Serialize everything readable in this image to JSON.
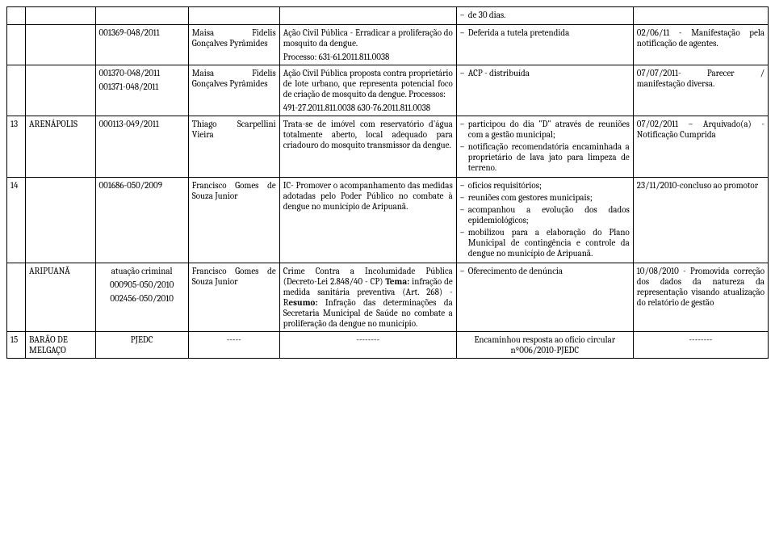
{
  "rows": [
    {
      "num": "",
      "city": "",
      "proc": "",
      "resp": "",
      "desc": "",
      "status": [
        "de 30 dias."
      ],
      "note": ""
    },
    {
      "num": "",
      "city": "",
      "proc": "001369-048/2011",
      "resp": "Maisa Fidelis Gonçalves Pyrâmides",
      "desc_paras": [
        "Ação Civil Pública - Erradicar a proliferação do mosquito da dengue.",
        "Processo: 631-61.2011.811.0038"
      ],
      "status": [
        "Deferida a tutela pretendida"
      ],
      "note": "02/06/11 - Manifestação pela notificação de agentes."
    },
    {
      "num": "",
      "city": "",
      "proc_paras": [
        "001370-048/2011",
        "001371-048/2011"
      ],
      "resp": "Maisa Fidelis Gonçalves Pyrâmides",
      "desc_paras": [
        "Ação Civil Pública proposta contra proprietário de lote urbano, que representa potencial foco de criação de mosquito da dengue. Processos:",
        "491-27.2011.811.0038 630-76.2011.811.0038"
      ],
      "status": [
        "ACP - distribuída"
      ],
      "note": "07/07/2011- Parecer / manifestação diversa."
    },
    {
      "num": "13",
      "city": "ARENÁPOLIS",
      "proc": "000113-049/2011",
      "resp": "Thiago Scarpellini Vieira",
      "desc": "Trata-se de imóvel com reservatório d'água totalmente aberto, local adequado para criadouro do mosquito transmissor da dengue.",
      "status": [
        "participou do dia \"D\" através de reuniões com a gestão municipal;",
        "notificação recomendatória encaminhada a proprietário de lava jato para limpeza de terreno."
      ],
      "note": "07/02/2011 – Arquivado(a) - Notificação Cumprida"
    },
    {
      "num": "14",
      "city": "",
      "proc": "001686-050/2009",
      "resp": "Francisco Gomes de Souza Junior",
      "desc": "IC- Promover o acompanhamento das medidas adotadas pelo Poder Público no combate à dengue no município de Aripuanã.",
      "status": [
        "ofícios requisitórios;",
        "reuniões com gestores municipais;",
        "acompanhou a evolução dos dados epidemiológicos;",
        "mobilizou para a elaboração do Plano Municipal de contingência e controle da dengue no município de Aripuanã."
      ],
      "note": "23/11/2010-concluso ao promotor"
    },
    {
      "num": "",
      "city": "ARIPUANÃ",
      "proc_paras": [
        "atuação criminal",
        "000905-050/2010",
        "002456-050/2010"
      ],
      "proc_center": true,
      "resp": "Francisco Gomes de Souza Junior",
      "desc_html": "Crime Contra a Incolumidade Pública (Decreto-Lei 2.848/40 - CP) <b>Tema:</b> infração de medida sanitária preventiva (Art. 268) -R<b>esumo:</b> Infração das determinações da Secretaria Municipal de Saúde no combate a proliferação da dengue no município.",
      "status": [
        "Oferecimento de denúncia"
      ],
      "note": "10/08/2010 - Promovida correção dos dados da natureza da representação visando atualização do relatório de gestão"
    },
    {
      "num": "15",
      "city": "BARÃO DE MELGAÇO",
      "proc": "PJEDC",
      "proc_center": true,
      "resp": "-----",
      "resp_center": true,
      "desc": "--------",
      "desc_center": true,
      "status_text": "Encaminhou resposta ao ofício circular nº006/2010-PJEDC",
      "status_center": true,
      "note": "--------",
      "note_center": true
    }
  ]
}
